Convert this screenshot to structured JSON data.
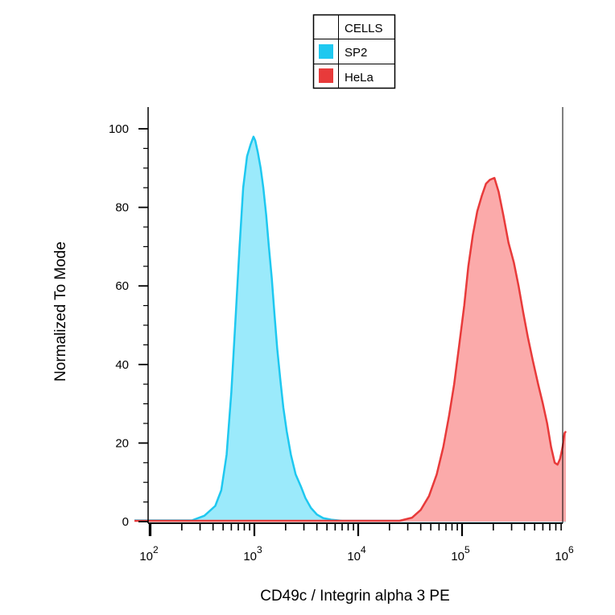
{
  "chart_data": {
    "type": "area",
    "title": "",
    "xlabel": "CD49c / Integrin alpha 3 PE",
    "ylabel": "Normalized To Mode",
    "x_scale": "log",
    "xlim": [
      70,
      1000000
    ],
    "ylim": [
      0,
      105
    ],
    "x_ticks": [
      {
        "value": 100,
        "base": "10",
        "exp": "2"
      },
      {
        "value": 1000,
        "base": "10",
        "exp": "3"
      },
      {
        "value": 10000,
        "base": "10",
        "exp": "4"
      },
      {
        "value": 100000,
        "base": "10",
        "exp": "5"
      },
      {
        "value": 1000000,
        "base": "10",
        "exp": "6"
      }
    ],
    "y_ticks": [
      "0",
      "20",
      "40",
      "60",
      "80",
      "100"
    ],
    "grid": false,
    "legend": {
      "title": "CELLS",
      "placement": "top-center",
      "entries": [
        {
          "name": "SP2",
          "color": "#1ec8f0",
          "fill": "#9beafb"
        },
        {
          "name": "HeLa",
          "color": "#e83a3a",
          "fill": "#fbaaaa"
        }
      ]
    },
    "series": [
      {
        "name": "SP2",
        "points": [
          [
            70,
            0.3
          ],
          [
            250,
            0.3
          ],
          [
            330,
            1.5
          ],
          [
            420,
            4
          ],
          [
            480,
            8
          ],
          [
            540,
            17
          ],
          [
            600,
            33
          ],
          [
            660,
            52
          ],
          [
            720,
            70
          ],
          [
            780,
            85
          ],
          [
            850,
            93
          ],
          [
            920,
            96
          ],
          [
            980,
            98
          ],
          [
            1020,
            97
          ],
          [
            1080,
            94
          ],
          [
            1150,
            90
          ],
          [
            1220,
            85
          ],
          [
            1300,
            78
          ],
          [
            1380,
            70
          ],
          [
            1470,
            62
          ],
          [
            1560,
            53
          ],
          [
            1660,
            44
          ],
          [
            1780,
            36
          ],
          [
            1900,
            29
          ],
          [
            2050,
            23
          ],
          [
            2250,
            17
          ],
          [
            2500,
            12
          ],
          [
            2800,
            9
          ],
          [
            3100,
            6
          ],
          [
            3500,
            3.5
          ],
          [
            4000,
            1.8
          ],
          [
            4600,
            0.9
          ],
          [
            5500,
            0.5
          ],
          [
            7000,
            0.2
          ],
          [
            1000000,
            0.2
          ]
        ]
      },
      {
        "name": "HeLa",
        "points": [
          [
            70,
            0.2
          ],
          [
            25000,
            0.2
          ],
          [
            33000,
            1
          ],
          [
            40000,
            3
          ],
          [
            48000,
            6.5
          ],
          [
            57000,
            12
          ],
          [
            66000,
            19
          ],
          [
            75000,
            27
          ],
          [
            84000,
            35
          ],
          [
            94000,
            45
          ],
          [
            105000,
            55
          ],
          [
            115000,
            65
          ],
          [
            127000,
            73
          ],
          [
            140000,
            79
          ],
          [
            155000,
            83
          ],
          [
            170000,
            86
          ],
          [
            185000,
            87
          ],
          [
            205000,
            87.5
          ],
          [
            225000,
            84
          ],
          [
            250000,
            78
          ],
          [
            280000,
            71
          ],
          [
            315000,
            66
          ],
          [
            350000,
            60
          ],
          [
            390000,
            53
          ],
          [
            430000,
            47
          ],
          [
            480000,
            41
          ],
          [
            540000,
            35
          ],
          [
            600000,
            30
          ],
          [
            660000,
            25
          ],
          [
            720000,
            19
          ],
          [
            780000,
            15
          ],
          [
            830000,
            14.5
          ],
          [
            880000,
            16
          ],
          [
            930000,
            19
          ],
          [
            970000,
            22.5
          ],
          [
            1000000,
            23
          ]
        ]
      }
    ]
  }
}
